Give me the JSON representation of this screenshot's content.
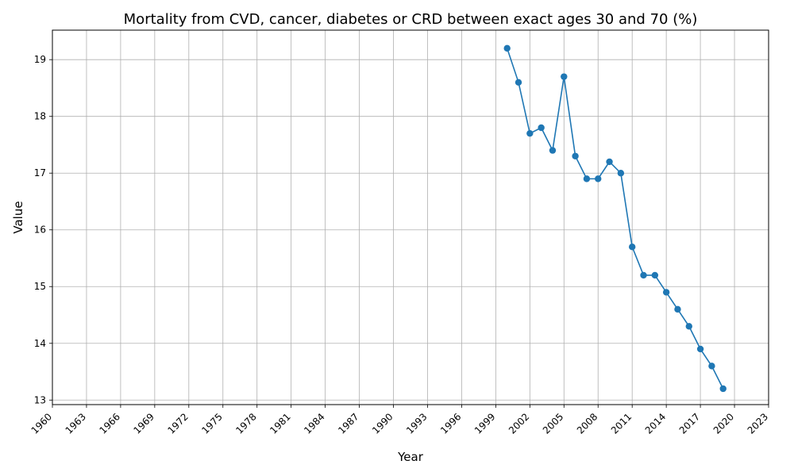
{
  "chart_data": {
    "type": "line",
    "title": "Mortality from CVD, cancer, diabetes or CRD between exact ages 30 and 70 (%)",
    "xlabel": "Year",
    "ylabel": "Value",
    "xlim": [
      1960,
      2023
    ],
    "ylim": [
      12.92,
      19.52
    ],
    "x_ticks": [
      1960,
      1963,
      1966,
      1969,
      1972,
      1975,
      1978,
      1981,
      1984,
      1987,
      1990,
      1993,
      1996,
      1999,
      2002,
      2005,
      2008,
      2011,
      2014,
      2017,
      2020,
      2023
    ],
    "y_ticks": [
      13,
      14,
      15,
      16,
      17,
      18,
      19
    ],
    "grid": true,
    "legend": "none",
    "series": [
      {
        "color": "#1f77b4",
        "marker": "circle",
        "x": [
          2000,
          2001,
          2002,
          2003,
          2004,
          2005,
          2006,
          2007,
          2008,
          2009,
          2010,
          2011,
          2012,
          2013,
          2014,
          2015,
          2016,
          2017,
          2018,
          2019
        ],
        "values": [
          19.2,
          18.6,
          17.7,
          17.8,
          17.4,
          18.7,
          17.3,
          16.9,
          16.9,
          17.2,
          17.0,
          15.7,
          15.2,
          15.2,
          14.9,
          14.6,
          14.3,
          13.9,
          13.6,
          13.2
        ]
      }
    ]
  }
}
